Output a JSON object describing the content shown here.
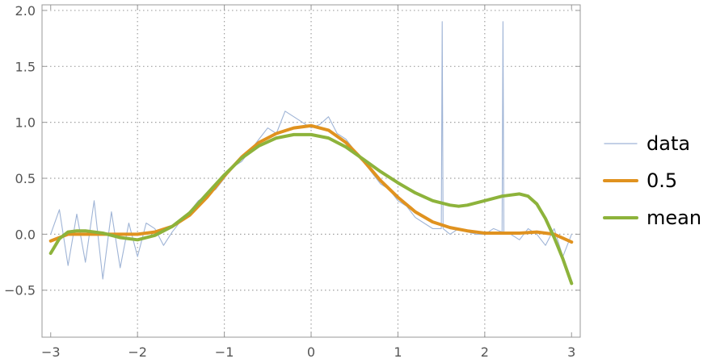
{
  "chart_data": {
    "type": "line",
    "title": "",
    "xlabel": "",
    "ylabel": "",
    "xlim": [
      -3.1,
      3.1
    ],
    "ylim": [
      -0.92,
      2.05
    ],
    "grid": true,
    "grid_style": "dotted",
    "legend_placement": "right",
    "x_ticks": [
      -3,
      -2,
      -1,
      0,
      1,
      2,
      3
    ],
    "y_ticks": [
      -0.5,
      0.0,
      0.5,
      1.0,
      1.5,
      2.0
    ],
    "x_tick_labels": [
      "−3",
      "−2",
      "−1",
      "0",
      "1",
      "2",
      "3"
    ],
    "y_tick_labels": [
      "−0.5",
      "0.0",
      "0.5",
      "1.0",
      "1.5",
      "2.0"
    ],
    "series": [
      {
        "name": "data",
        "color": "#9fb4d6",
        "style": "thin",
        "x": [
          -3.0,
          -2.9,
          -2.8,
          -2.7,
          -2.6,
          -2.5,
          -2.4,
          -2.3,
          -2.2,
          -2.1,
          -2.0,
          -1.9,
          -1.8,
          -1.7,
          -1.6,
          -1.5,
          -1.4,
          -1.3,
          -1.2,
          -1.1,
          -1.0,
          -0.9,
          -0.8,
          -0.7,
          -0.6,
          -0.5,
          -0.4,
          -0.3,
          -0.2,
          -0.1,
          0.0,
          0.1,
          0.2,
          0.3,
          0.4,
          0.5,
          0.6,
          0.7,
          0.8,
          0.9,
          1.0,
          1.1,
          1.2,
          1.3,
          1.4,
          1.5,
          1.51,
          1.52,
          1.6,
          1.7,
          1.8,
          1.9,
          2.0,
          2.1,
          2.2,
          2.21,
          2.22,
          2.3,
          2.4,
          2.5,
          2.6,
          2.7,
          2.8,
          2.9,
          3.0
        ],
        "y": [
          0.0,
          0.22,
          -0.28,
          0.18,
          -0.25,
          0.3,
          -0.4,
          0.2,
          -0.3,
          0.1,
          -0.2,
          0.1,
          0.05,
          -0.1,
          0.02,
          0.12,
          0.2,
          0.3,
          0.35,
          0.4,
          0.5,
          0.6,
          0.65,
          0.75,
          0.85,
          0.95,
          0.9,
          1.1,
          1.05,
          1.0,
          0.95,
          0.98,
          1.05,
          0.9,
          0.85,
          0.75,
          0.65,
          0.55,
          0.45,
          0.4,
          0.3,
          0.25,
          0.15,
          0.1,
          0.05,
          0.05,
          1.9,
          0.05,
          0.0,
          0.05,
          0.02,
          0.0,
          0.0,
          0.05,
          0.02,
          1.9,
          0.02,
          0.0,
          -0.05,
          0.05,
          0.0,
          -0.1,
          0.05,
          -0.2,
          0.0
        ]
      },
      {
        "name": "0.5",
        "color": "#e0921f",
        "style": "thick",
        "x": [
          -3.0,
          -2.8,
          -2.6,
          -2.4,
          -2.2,
          -2.0,
          -1.8,
          -1.6,
          -1.4,
          -1.2,
          -1.0,
          -0.8,
          -0.6,
          -0.4,
          -0.2,
          0.0,
          0.2,
          0.4,
          0.6,
          0.8,
          1.0,
          1.2,
          1.4,
          1.6,
          1.8,
          2.0,
          2.2,
          2.4,
          2.6,
          2.8,
          3.0
        ],
        "y": [
          -0.06,
          0.0,
          0.0,
          0.0,
          0.0,
          0.0,
          0.02,
          0.07,
          0.17,
          0.33,
          0.52,
          0.69,
          0.82,
          0.9,
          0.95,
          0.97,
          0.93,
          0.82,
          0.66,
          0.48,
          0.33,
          0.2,
          0.11,
          0.06,
          0.03,
          0.01,
          0.01,
          0.01,
          0.02,
          0.0,
          -0.07
        ]
      },
      {
        "name": "mean",
        "color": "#8db33b",
        "style": "thick",
        "x": [
          -3.0,
          -2.9,
          -2.8,
          -2.7,
          -2.6,
          -2.4,
          -2.2,
          -2.0,
          -1.8,
          -1.6,
          -1.4,
          -1.2,
          -1.0,
          -0.8,
          -0.6,
          -0.4,
          -0.2,
          0.0,
          0.2,
          0.4,
          0.6,
          0.8,
          1.0,
          1.2,
          1.4,
          1.6,
          1.7,
          1.8,
          2.0,
          2.2,
          2.4,
          2.5,
          2.6,
          2.7,
          2.8,
          2.9,
          3.0
        ],
        "y": [
          -0.17,
          -0.04,
          0.02,
          0.03,
          0.03,
          0.01,
          -0.03,
          -0.05,
          -0.01,
          0.07,
          0.19,
          0.36,
          0.53,
          0.68,
          0.79,
          0.86,
          0.89,
          0.89,
          0.86,
          0.78,
          0.67,
          0.56,
          0.46,
          0.37,
          0.3,
          0.26,
          0.25,
          0.26,
          0.3,
          0.34,
          0.36,
          0.34,
          0.27,
          0.14,
          -0.03,
          -0.22,
          -0.44
        ]
      }
    ]
  }
}
